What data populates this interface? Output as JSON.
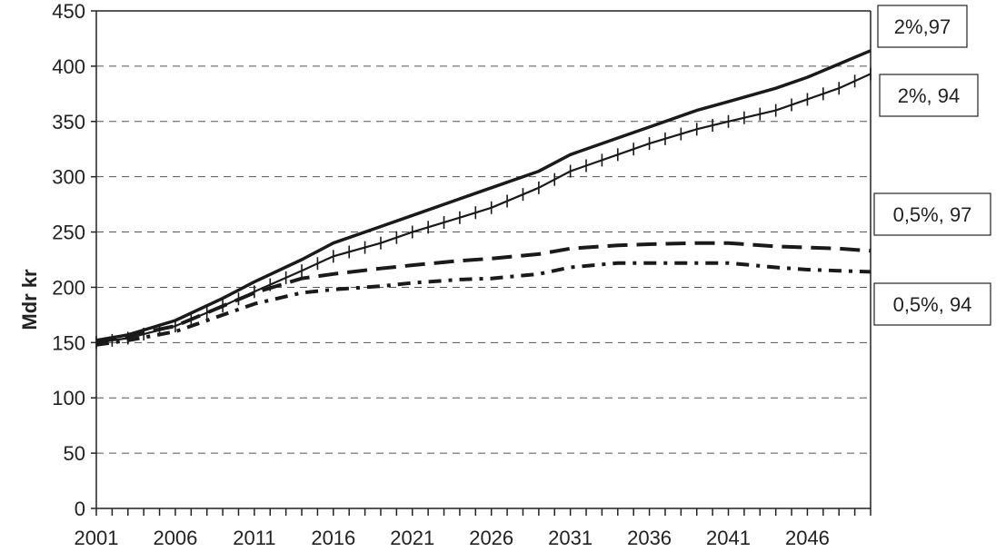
{
  "chart_data": {
    "type": "line",
    "ylabel": "Mdr kr",
    "xlabel": "",
    "title": "",
    "ylim": [
      0,
      450
    ],
    "xlim": [
      2001,
      2050
    ],
    "y_ticks": [
      0,
      50,
      100,
      150,
      200,
      250,
      300,
      350,
      400,
      450
    ],
    "x_ticks": [
      2001,
      2006,
      2011,
      2016,
      2021,
      2026,
      2031,
      2036,
      2041,
      2046
    ],
    "grid": "horizontal-dashed",
    "legend_placement": "right",
    "series": [
      {
        "name": "2%,97",
        "style": "solid",
        "x": [
          2001,
          2003,
          2006,
          2009,
          2011,
          2014,
          2016,
          2019,
          2021,
          2024,
          2026,
          2029,
          2031,
          2034,
          2036,
          2039,
          2041,
          2044,
          2046,
          2048,
          2050
        ],
        "y": [
          152,
          157,
          170,
          190,
          205,
          225,
          240,
          255,
          265,
          280,
          290,
          305,
          320,
          335,
          345,
          360,
          368,
          380,
          390,
          402,
          414
        ]
      },
      {
        "name": "2%, 94",
        "style": "cross-marker",
        "x": [
          2001,
          2003,
          2006,
          2009,
          2011,
          2014,
          2016,
          2019,
          2021,
          2024,
          2026,
          2029,
          2031,
          2034,
          2036,
          2039,
          2041,
          2044,
          2046,
          2048,
          2050
        ],
        "y": [
          150,
          154,
          165,
          183,
          196,
          215,
          228,
          240,
          250,
          263,
          272,
          290,
          305,
          320,
          330,
          343,
          350,
          360,
          370,
          380,
          393
        ]
      },
      {
        "name": "0,5%, 97",
        "style": "long-dash",
        "x": [
          2001,
          2003,
          2006,
          2009,
          2011,
          2014,
          2016,
          2019,
          2021,
          2024,
          2026,
          2029,
          2031,
          2034,
          2036,
          2039,
          2041,
          2044,
          2046,
          2048,
          2050
        ],
        "y": [
          151,
          156,
          165,
          183,
          195,
          208,
          212,
          217,
          220,
          224,
          226,
          230,
          235,
          238,
          239,
          240,
          240,
          237,
          236,
          235,
          233
        ]
      },
      {
        "name": "0,5%, 94",
        "style": "dash-dot",
        "x": [
          2001,
          2003,
          2006,
          2009,
          2011,
          2014,
          2016,
          2019,
          2021,
          2024,
          2026,
          2029,
          2031,
          2034,
          2036,
          2039,
          2041,
          2044,
          2046,
          2048,
          2050
        ],
        "y": [
          148,
          152,
          160,
          175,
          185,
          195,
          198,
          201,
          204,
          207,
          208,
          212,
          218,
          222,
          222,
          222,
          222,
          218,
          216,
          215,
          214
        ]
      }
    ]
  }
}
